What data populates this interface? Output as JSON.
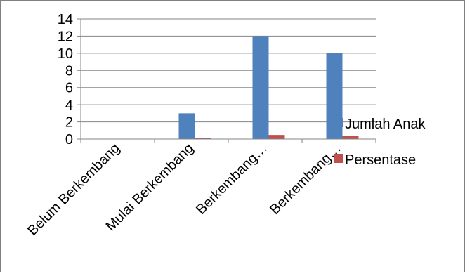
{
  "chart_data": {
    "type": "bar",
    "title": "",
    "xlabel": "",
    "ylabel": "",
    "categories": [
      "Belum Berkembang",
      "Mulai Berkembang",
      "Berkembang…",
      "Berkembang…"
    ],
    "series": [
      {
        "name": "Jumlah Anak",
        "values": [
          0,
          3,
          12,
          10
        ],
        "color": "#4f81bd"
      },
      {
        "name": "Persentase",
        "values": [
          0,
          0.1,
          0.48,
          0.4
        ],
        "color": "#c0504d"
      }
    ],
    "ylim": [
      0,
      14
    ],
    "yticks": [
      "0",
      "2",
      "4",
      "6",
      "8",
      "10",
      "12",
      "14"
    ],
    "grid": true,
    "legend_position": "right"
  }
}
